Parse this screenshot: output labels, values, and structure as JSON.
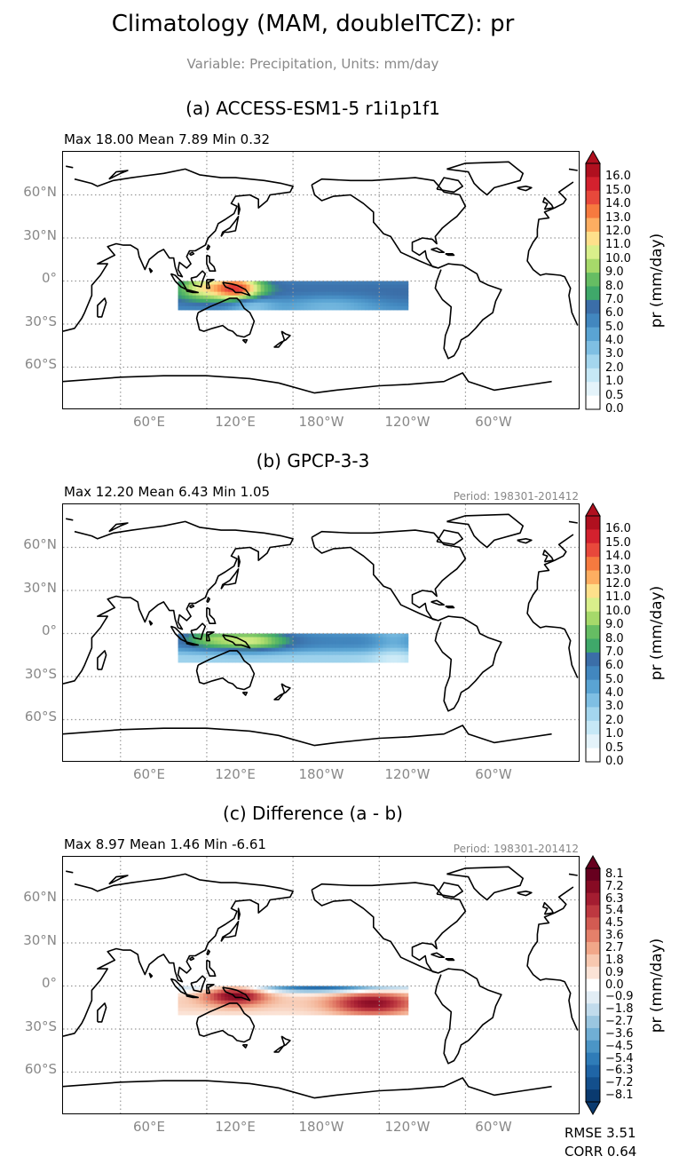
{
  "title": "Climatology (MAM, doubleITCZ): pr",
  "subtitle": "Variable: Precipitation, Units: mm/day",
  "lat_labels": [
    "60°N",
    "30°N",
    "0°",
    "30°S",
    "60°S"
  ],
  "lon_labels": [
    "60°E",
    "120°E",
    "180°W",
    "120°W",
    "60°W"
  ],
  "panels": [
    {
      "title": "(a) ACCESS-ESM1-5 r1i1p1f1",
      "stats": "Max 18.00 Mean 7.89 Min 0.32",
      "period": "",
      "colorbar_label": "pr (mm/day)",
      "colorbar_ticks": [
        "16.0",
        "15.0",
        "14.0",
        "13.0",
        "12.0",
        "11.0",
        "10.0",
        "9.0",
        "8.0",
        "7.0",
        "6.0",
        "5.0",
        "4.0",
        "3.0",
        "2.0",
        "1.0",
        "0.5",
        "0.0"
      ]
    },
    {
      "title": "(b) GPCP-3-3",
      "stats": "Max 12.20 Mean 6.43 Min 1.05",
      "period": "Period: 198301-201412",
      "colorbar_label": "pr (mm/day)",
      "colorbar_ticks": [
        "16.0",
        "15.0",
        "14.0",
        "13.0",
        "12.0",
        "11.0",
        "10.0",
        "9.0",
        "8.0",
        "7.0",
        "6.0",
        "5.0",
        "4.0",
        "3.0",
        "2.0",
        "1.0",
        "0.5",
        "0.0"
      ]
    },
    {
      "title": "(c) Difference (a - b)",
      "stats": "Max 8.97 Mean 1.46 Min -6.61",
      "period": "Period: 198301-201412",
      "colorbar_label": "pr (mm/day)",
      "colorbar_ticks": [
        "8.1",
        "7.2",
        "6.3",
        "5.4",
        "4.5",
        "3.6",
        "2.7",
        "1.8",
        "0.9",
        "0.0",
        "−0.9",
        "−1.8",
        "−2.7",
        "−3.6",
        "−4.5",
        "−5.4",
        "−6.3",
        "−7.2",
        "−8.1"
      ]
    }
  ],
  "footer": {
    "rmse": "RMSE 3.51",
    "corr": "CORR 0.64"
  },
  "colors": {
    "precip_scale": [
      "#ffffff",
      "#e4f3fa",
      "#c6e8f6",
      "#a4d6ee",
      "#7fbfe3",
      "#5aa4d3",
      "#4287bf",
      "#3b6ea8",
      "#3fa86a",
      "#66bd63",
      "#a6d96a",
      "#d9ef8b",
      "#fee08b",
      "#fdae61",
      "#f67a3f",
      "#e8483b",
      "#d3212e",
      "#b0101f"
    ],
    "diff_scale": [
      "#0a3a6f",
      "#134f8c",
      "#1f65a6",
      "#2f7cb8",
      "#4b95c6",
      "#70aed4",
      "#9ac6e0",
      "#c1dbec",
      "#e2edf5",
      "#ffffff",
      "#fbe3d6",
      "#f7c8b0",
      "#f1a789",
      "#e4806a",
      "#d25b52",
      "#bd3840",
      "#a41d31",
      "#870b24",
      "#67001f"
    ]
  }
}
